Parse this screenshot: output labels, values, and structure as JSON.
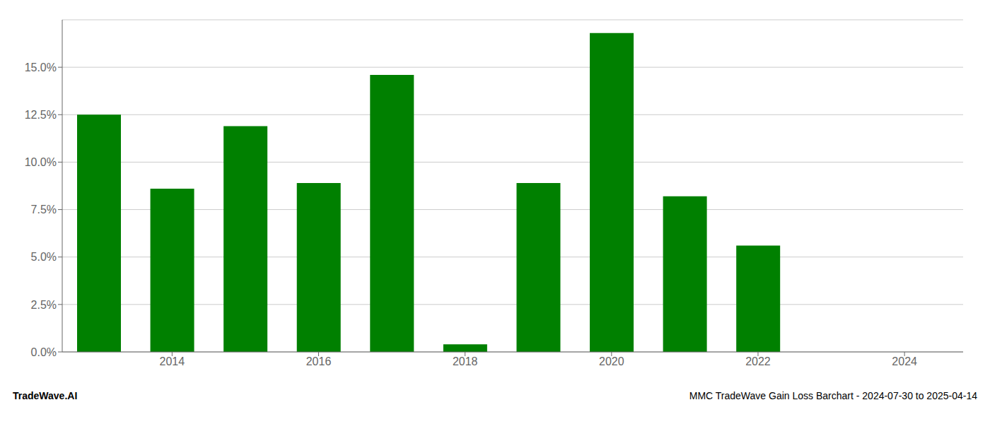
{
  "chart_data": {
    "type": "bar",
    "x": [
      2013,
      2014,
      2015,
      2016,
      2017,
      2018,
      2019,
      2020,
      2021,
      2022,
      2023,
      2024
    ],
    "values": [
      0.125,
      0.086,
      0.119,
      0.089,
      0.146,
      0.004,
      0.089,
      0.168,
      0.082,
      0.056,
      0.0,
      0.0
    ],
    "color": "#008000",
    "xlim": [
      2012.5,
      2024.8
    ],
    "xticks": [
      2014,
      2016,
      2018,
      2020,
      2022,
      2024
    ],
    "ylim": [
      0,
      0.175
    ],
    "yticks": [
      {
        "value": 0.0,
        "label": "0.0%"
      },
      {
        "value": 0.025,
        "label": "2.5%"
      },
      {
        "value": 0.05,
        "label": "5.0%"
      },
      {
        "value": 0.075,
        "label": "7.5%"
      },
      {
        "value": 0.1,
        "label": "10.0%"
      },
      {
        "value": 0.125,
        "label": "12.5%"
      },
      {
        "value": 0.15,
        "label": "15.0%"
      }
    ],
    "grid": true,
    "annotations": [
      "TradeWave.AI",
      "MMC TradeWave Gain Loss Barchart - 2024-07-30 to 2025-04-14"
    ]
  }
}
